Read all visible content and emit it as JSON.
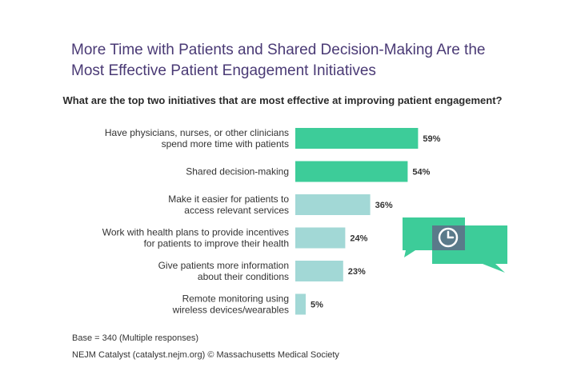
{
  "title_line1": "More Time with Patients and Shared Decision-Making Are the",
  "title_line2": "Most Effective Patient Engagement Initiatives",
  "question": "What are the top two initiatives that are most effective at improving patient engagement?",
  "footer": {
    "base": "Base = 340 (Multiple responses)",
    "source": "NEJM Catalyst (catalyst.nejm.org) © Massachusetts Medical Society"
  },
  "colors": {
    "title": "#4a3a75",
    "bar_top": "#3dcc99",
    "bar_other": "#a2d8d6",
    "bubble_front": "#3dcc99",
    "bubble_back": "#5a7a8a"
  },
  "icons": [
    "speech-bubble-clock-icon"
  ],
  "chart_data": {
    "type": "bar",
    "orientation": "horizontal",
    "categories": [
      [
        "Have physicians, nurses, or other clinicians",
        "spend more time with patients"
      ],
      [
        "Shared decision-making"
      ],
      [
        "Make it easier for patients to",
        "access relevant services"
      ],
      [
        "Work with health plans to provide incentives",
        "for patients to improve their health"
      ],
      [
        "Give patients more information",
        "about their conditions"
      ],
      [
        "Remote monitoring using",
        "wireless devices/wearables"
      ]
    ],
    "values": [
      59,
      54,
      36,
      24,
      23,
      5
    ],
    "value_labels": [
      "59%",
      "54%",
      "36%",
      "24%",
      "23%",
      "5%"
    ],
    "highlight_top_n": 2,
    "xlim": [
      0,
      100
    ],
    "grid": false,
    "title": "More Time with Patients and Shared Decision-Making Are the Most Effective Patient Engagement Initiatives",
    "subtitle": "What are the top two initiatives that are most effective at improving patient engagement?"
  }
}
